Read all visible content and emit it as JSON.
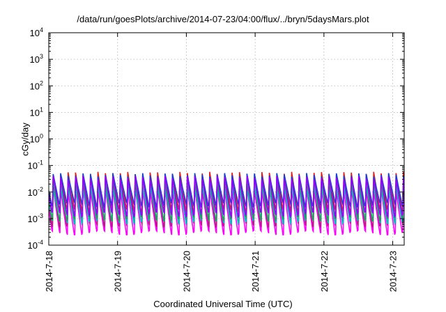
{
  "chart_data": {
    "type": "line",
    "title": "/data/run/goesPlots/archive/2014-07-23/04:00/flux/../bryn/5daysMars.plot",
    "xlabel": "Coordinated Universal Time (UTC)",
    "ylabel": "cGy/day",
    "yscale": "log",
    "ylim": [
      0.0001,
      10000
    ],
    "xlim": [
      "2014-07-18T00:00",
      "2014-07-23T04:00"
    ],
    "grid": true,
    "legend": "none",
    "y_ticks": [
      {
        "base": "10",
        "exp": "-4"
      },
      {
        "base": "10",
        "exp": "-3"
      },
      {
        "base": "10",
        "exp": "-2"
      },
      {
        "base": "10",
        "exp": "-1"
      },
      {
        "base": "10",
        "exp": "0"
      },
      {
        "base": "10",
        "exp": "1"
      },
      {
        "base": "10",
        "exp": "2"
      },
      {
        "base": "10",
        "exp": "3"
      },
      {
        "base": "10",
        "exp": "4"
      }
    ],
    "x_ticks": [
      "2014-7-18",
      "2014-7-19",
      "2014-7-20",
      "2014-7-21",
      "2014-7-22",
      "2014-7-23"
    ],
    "pattern": "sawtooth",
    "cycle_hours": 2.6,
    "series": [
      {
        "color": "#ff00ff",
        "peak": 0.012,
        "trough": 0.0003
      },
      {
        "color": "#c0188c",
        "peak": 0.02,
        "trough": 0.0006
      },
      {
        "color": "#e02020",
        "peak": 0.05,
        "trough": 0.002
      },
      {
        "color": "#00bfbf",
        "peak": 0.015,
        "trough": 0.0008
      },
      {
        "color": "#20a060",
        "peak": 0.03,
        "trough": 0.001
      },
      {
        "color": "#1f3fd0",
        "peak": 0.045,
        "trough": 0.0035
      },
      {
        "color": "#9b00ff",
        "peak": 0.035,
        "trough": 0.0015
      }
    ]
  }
}
